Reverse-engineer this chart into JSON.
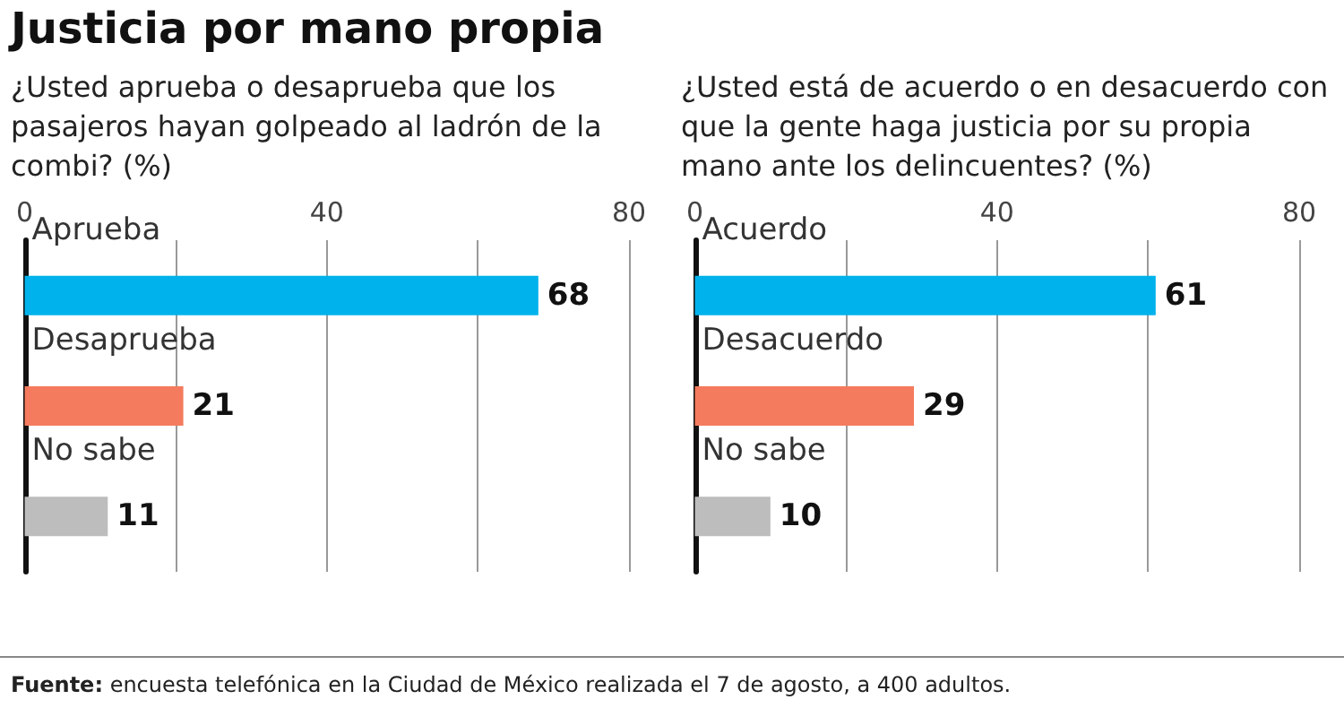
{
  "chart_data": [
    {
      "type": "bar",
      "orientation": "horizontal",
      "title": "Justicia por mano propia",
      "subtitle": "¿Usted aprueba o desaprueba que los pasajeros hayan golpeado al ladrón de la combi? (%)",
      "categories": [
        "Aprueba",
        "Desaprueba",
        "No sabe"
      ],
      "values": [
        68,
        21,
        11
      ],
      "colors": [
        "#00b2ec",
        "#f47b5e",
        "#bdbdbd"
      ],
      "xlim": [
        0,
        80
      ],
      "xticks": [
        0,
        40,
        80
      ],
      "grid": "x",
      "data_labels": true,
      "annotations": [
        "Fuente: encuesta telefónica en la Ciudad de México realizada el 7 de agosto, a 400 adultos."
      ]
    },
    {
      "type": "bar",
      "orientation": "horizontal",
      "subtitle": "¿Usted está de acuerdo o en desacuerdo con que la gente haga justicia por su propia mano ante los delincuentes? (%)",
      "categories": [
        "Acuerdo",
        "Desacuerdo",
        "No sabe"
      ],
      "values": [
        61,
        29,
        10
      ],
      "colors": [
        "#00b2ec",
        "#f47b5e",
        "#bdbdbd"
      ],
      "xlim": [
        0,
        80
      ],
      "xticks": [
        0,
        40,
        80
      ],
      "grid": "x",
      "data_labels": true
    }
  ]
}
